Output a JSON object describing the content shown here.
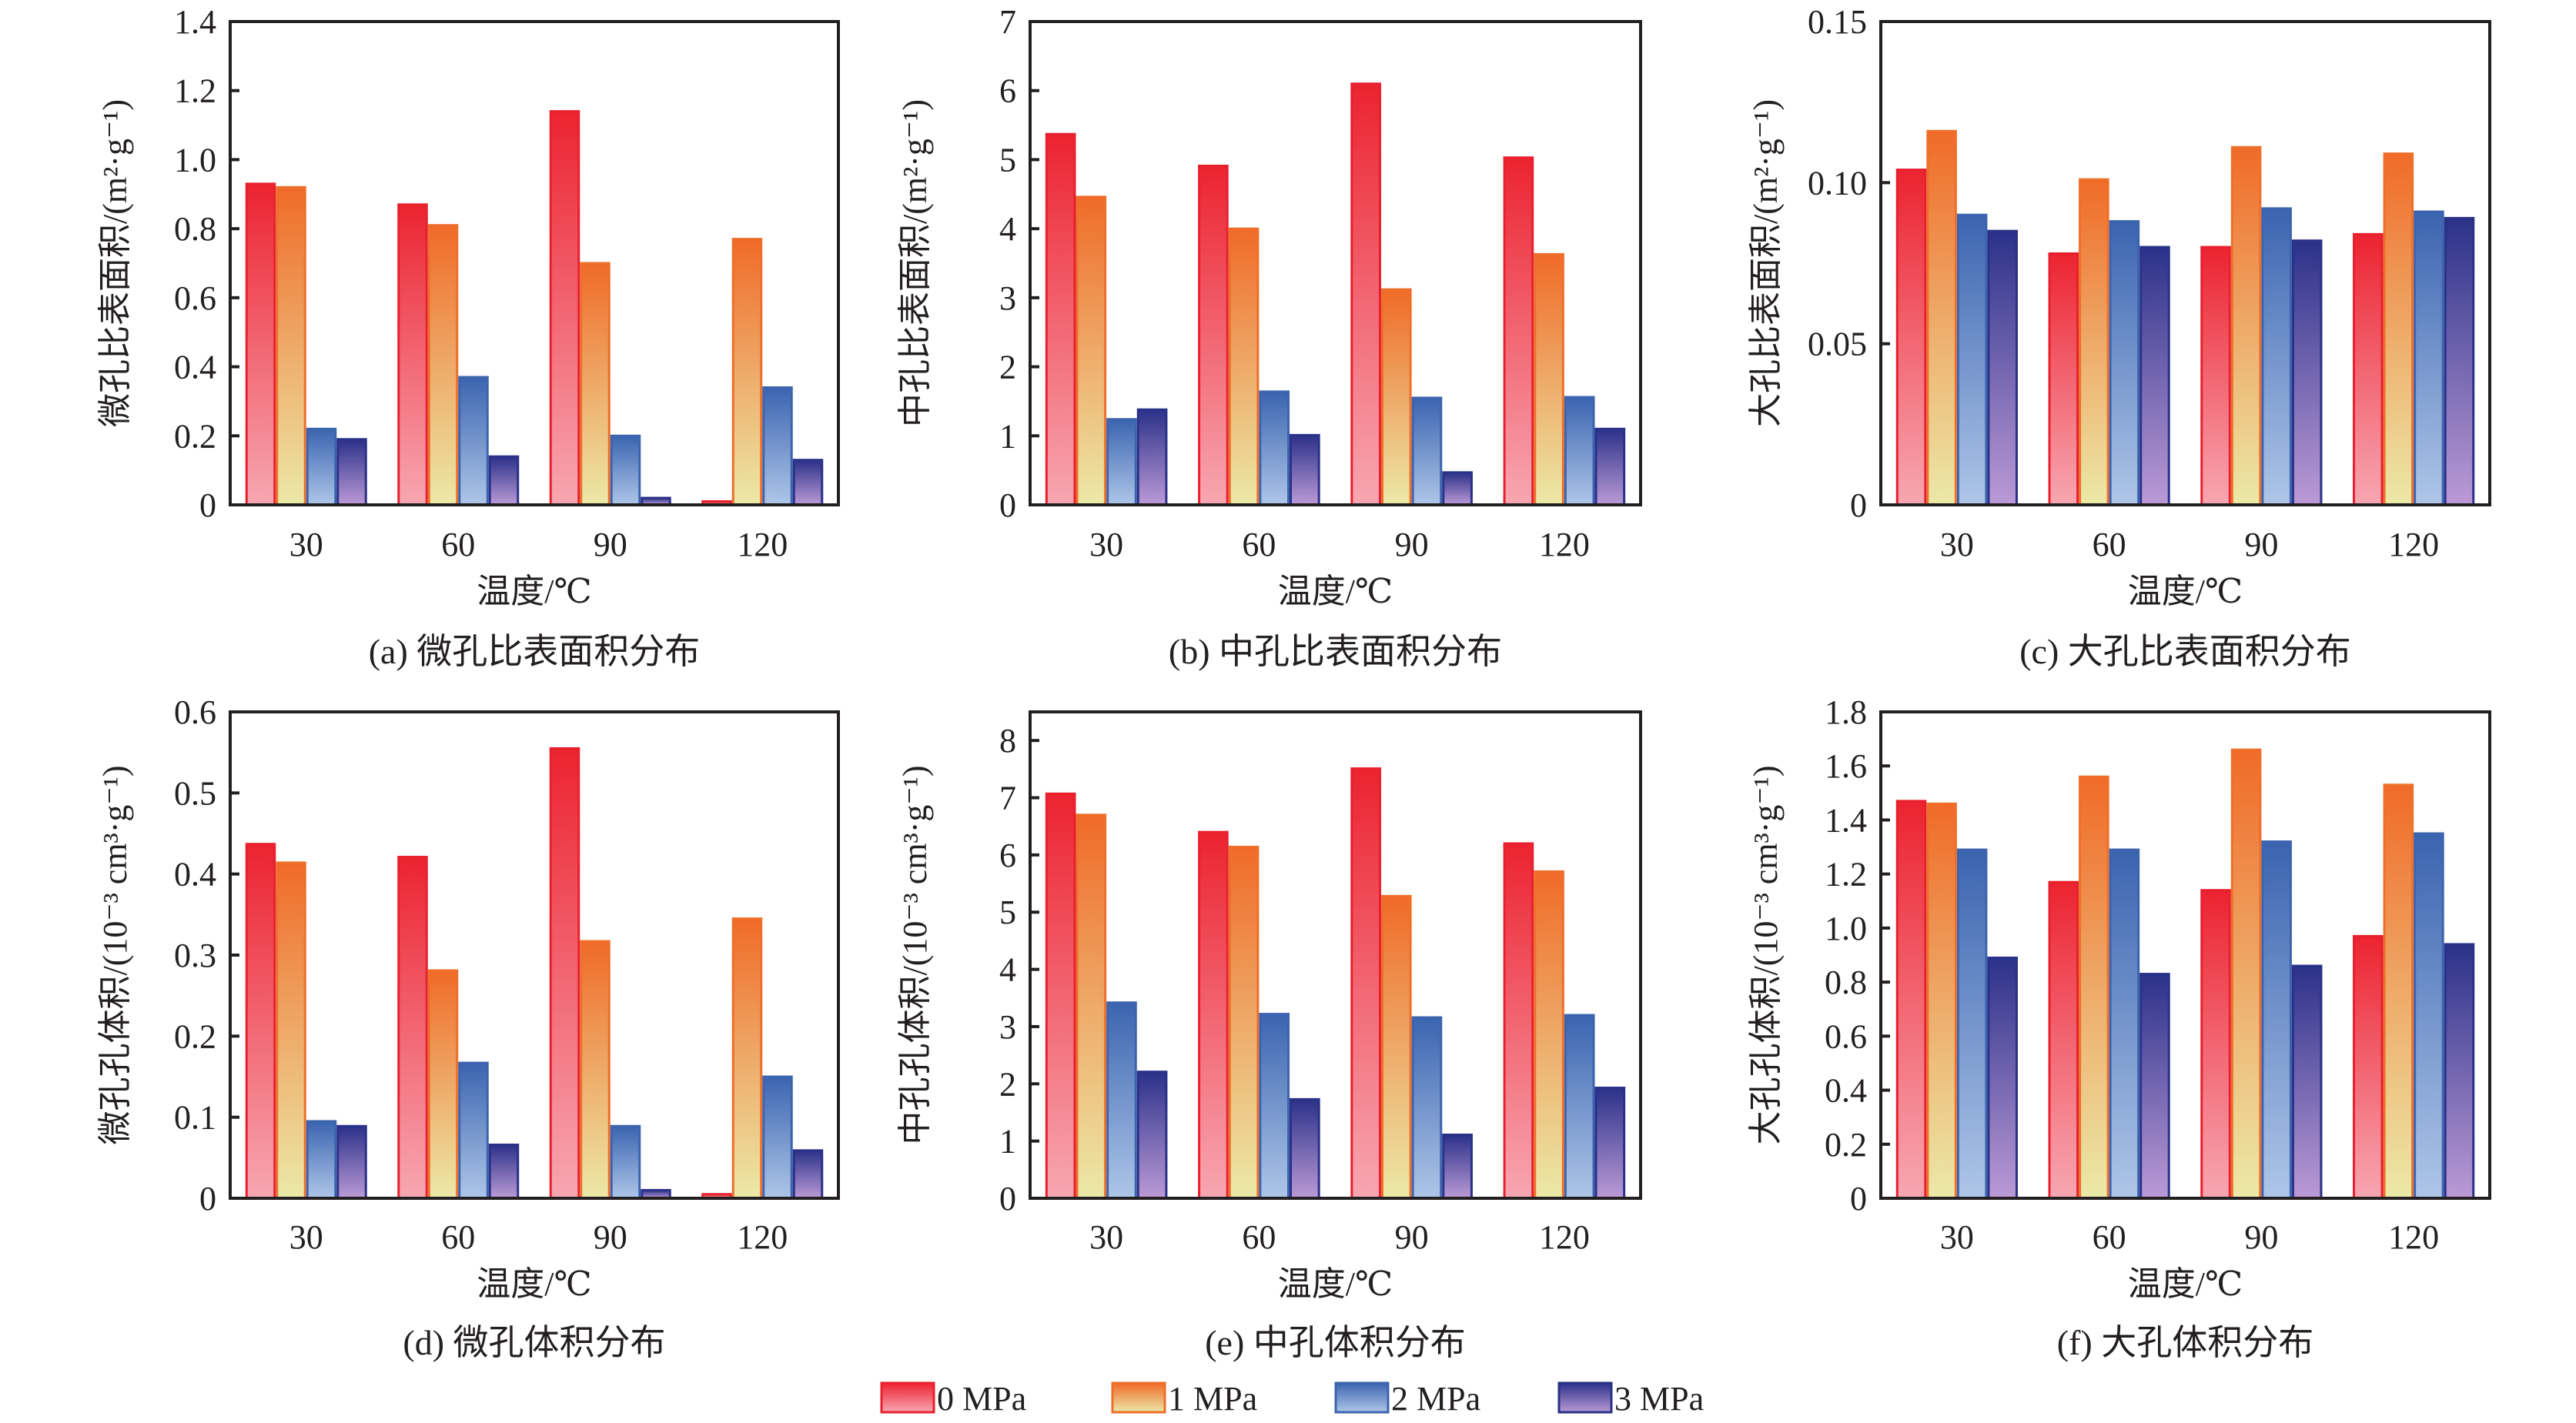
{
  "legend": [
    {
      "label": "0 MPa",
      "stroke": "#e8202e",
      "top": "#ec2330",
      "bottom": "#f7a7b2"
    },
    {
      "label": "1 MPa",
      "stroke": "#ee6f2a",
      "top": "#f06a28",
      "bottom": "#ece9a8"
    },
    {
      "label": "2 MPa",
      "stroke": "#3c64ae",
      "top": "#3b64b0",
      "bottom": "#aec6e8"
    },
    {
      "label": "3 MPa",
      "stroke": "#2a3188",
      "top": "#2b3189",
      "bottom": "#bb9ad6"
    }
  ],
  "chart_data": [
    {
      "id": "a",
      "type": "bar",
      "title": "(a) 微孔比表面积分布",
      "xlabel": "温度/℃",
      "ylabel": "微孔比表面积/(m²·g⁻¹)",
      "categories": [
        "30",
        "60",
        "90",
        "120"
      ],
      "ylim": [
        0,
        1.4
      ],
      "yticks": [
        "0",
        "0.2",
        "0.4",
        "0.6",
        "0.8",
        "1.0",
        "1.2",
        "1.4"
      ],
      "ytick_values": [
        0,
        0.2,
        0.4,
        0.6,
        0.8,
        1.0,
        1.2,
        1.4
      ],
      "series": [
        {
          "name": "0 MPa",
          "values": [
            0.93,
            0.87,
            1.14,
            0.01
          ]
        },
        {
          "name": "1 MPa",
          "values": [
            0.92,
            0.81,
            0.7,
            0.77
          ]
        },
        {
          "name": "2 MPa",
          "values": [
            0.22,
            0.37,
            0.2,
            0.34
          ]
        },
        {
          "name": "3 MPa",
          "values": [
            0.19,
            0.14,
            0.02,
            0.13
          ]
        }
      ]
    },
    {
      "id": "b",
      "type": "bar",
      "title": "(b) 中孔比表面积分布",
      "xlabel": "温度/℃",
      "ylabel": "中孔比表面积/(m²·g⁻¹)",
      "categories": [
        "30",
        "60",
        "90",
        "120"
      ],
      "ylim": [
        0,
        7
      ],
      "yticks": [
        "0",
        "1",
        "2",
        "3",
        "4",
        "5",
        "6",
        "7"
      ],
      "ytick_values": [
        0,
        1,
        2,
        3,
        4,
        5,
        6,
        7
      ],
      "series": [
        {
          "name": "0 MPa",
          "values": [
            5.37,
            4.91,
            6.1,
            5.03
          ]
        },
        {
          "name": "1 MPa",
          "values": [
            4.46,
            4.0,
            3.12,
            3.63
          ]
        },
        {
          "name": "2 MPa",
          "values": [
            1.24,
            1.64,
            1.55,
            1.56
          ]
        },
        {
          "name": "3 MPa",
          "values": [
            1.38,
            1.01,
            0.47,
            1.1
          ]
        }
      ]
    },
    {
      "id": "c",
      "type": "bar",
      "title": "(c) 大孔比表面积分布",
      "xlabel": "温度/℃",
      "ylabel": "大孔比表面积/(m²·g⁻¹)",
      "categories": [
        "30",
        "60",
        "90",
        "120"
      ],
      "ylim": [
        0,
        0.15
      ],
      "yticks": [
        "0",
        "0.05",
        "0.10",
        "0.15"
      ],
      "ytick_values": [
        0,
        0.05,
        0.1,
        0.15
      ],
      "series": [
        {
          "name": "0 MPa",
          "values": [
            0.104,
            0.078,
            0.08,
            0.084
          ]
        },
        {
          "name": "1 MPa",
          "values": [
            0.116,
            0.101,
            0.111,
            0.109
          ]
        },
        {
          "name": "2 MPa",
          "values": [
            0.09,
            0.088,
            0.092,
            0.091
          ]
        },
        {
          "name": "3 MPa",
          "values": [
            0.085,
            0.08,
            0.082,
            0.089
          ]
        }
      ]
    },
    {
      "id": "d",
      "type": "bar",
      "title": "(d) 微孔体积分布",
      "xlabel": "温度/℃",
      "ylabel": "微孔孔体积/(10⁻³ cm³·g⁻¹)",
      "categories": [
        "30",
        "60",
        "90",
        "120"
      ],
      "ylim": [
        0,
        0.6
      ],
      "yticks": [
        "0",
        "0.1",
        "0.2",
        "0.3",
        "0.4",
        "0.5",
        "0.6"
      ],
      "ytick_values": [
        0,
        0.1,
        0.2,
        0.3,
        0.4,
        0.5,
        0.6
      ],
      "series": [
        {
          "name": "0 MPa",
          "values": [
            0.437,
            0.421,
            0.555,
            0.005
          ]
        },
        {
          "name": "1 MPa",
          "values": [
            0.414,
            0.281,
            0.317,
            0.345
          ]
        },
        {
          "name": "2 MPa",
          "values": [
            0.095,
            0.167,
            0.089,
            0.15
          ]
        },
        {
          "name": "3 MPa",
          "values": [
            0.089,
            0.066,
            0.01,
            0.059
          ]
        }
      ]
    },
    {
      "id": "e",
      "type": "bar",
      "title": "(e) 中孔体积分布",
      "xlabel": "温度/℃",
      "ylabel": "中孔孔体积/(10⁻³ cm³·g⁻¹)",
      "categories": [
        "30",
        "60",
        "90",
        "120"
      ],
      "ylim": [
        0,
        8.5
      ],
      "yticks": [
        "0",
        "1",
        "2",
        "3",
        "4",
        "5",
        "6",
        "7",
        "8"
      ],
      "ytick_values": [
        0,
        1,
        2,
        3,
        4,
        5,
        6,
        7,
        8
      ],
      "series": [
        {
          "name": "0 MPa",
          "values": [
            7.07,
            6.4,
            7.51,
            6.2
          ]
        },
        {
          "name": "1 MPa",
          "values": [
            6.7,
            6.14,
            5.28,
            5.71
          ]
        },
        {
          "name": "2 MPa",
          "values": [
            3.42,
            3.22,
            3.16,
            3.2
          ]
        },
        {
          "name": "3 MPa",
          "values": [
            2.21,
            1.73,
            1.11,
            1.93
          ]
        }
      ]
    },
    {
      "id": "f",
      "type": "bar",
      "title": "(f) 大孔体积分布",
      "xlabel": "温度/℃",
      "ylabel": "大孔孔体积/(10⁻³ cm³·g⁻¹)",
      "categories": [
        "30",
        "60",
        "90",
        "120"
      ],
      "ylim": [
        0,
        1.8
      ],
      "yticks": [
        "0",
        "0.2",
        "0.4",
        "0.6",
        "0.8",
        "1.0",
        "1.2",
        "1.4",
        "1.6",
        "1.8"
      ],
      "ytick_values": [
        0,
        0.2,
        0.4,
        0.6,
        0.8,
        1.0,
        1.2,
        1.4,
        1.6,
        1.8
      ],
      "series": [
        {
          "name": "0 MPa",
          "values": [
            1.47,
            1.17,
            1.14,
            0.97
          ]
        },
        {
          "name": "1 MPa",
          "values": [
            1.46,
            1.56,
            1.66,
            1.53
          ]
        },
        {
          "name": "2 MPa",
          "values": [
            1.29,
            1.29,
            1.32,
            1.35
          ]
        },
        {
          "name": "3 MPa",
          "values": [
            0.89,
            0.83,
            0.86,
            0.94
          ]
        }
      ]
    }
  ]
}
